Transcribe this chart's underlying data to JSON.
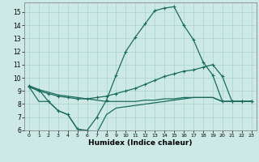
{
  "xlabel": "Humidex (Indice chaleur)",
  "bg_color": "#cce9e5",
  "line_color": "#1a6b5e",
  "grid_color": "#aad4cf",
  "xlim": [
    -0.5,
    23.5
  ],
  "ylim": [
    6,
    15.7
  ],
  "xticks": [
    0,
    1,
    2,
    3,
    4,
    5,
    6,
    7,
    8,
    9,
    10,
    11,
    12,
    13,
    14,
    15,
    16,
    17,
    18,
    19,
    20,
    21,
    22,
    23
  ],
  "yticks": [
    6,
    7,
    8,
    9,
    10,
    11,
    12,
    13,
    14,
    15
  ],
  "line1_x": [
    0,
    1,
    2,
    3,
    4,
    5,
    6,
    7,
    8,
    9,
    10,
    11,
    12,
    13,
    14,
    15,
    16,
    17,
    18,
    19,
    20,
    21,
    22,
    23
  ],
  "line1_y": [
    9.4,
    9.1,
    8.2,
    7.5,
    7.2,
    6.1,
    6.0,
    7.0,
    8.3,
    10.2,
    12.0,
    13.1,
    14.1,
    15.1,
    15.3,
    15.4,
    14.0,
    12.9,
    11.2,
    10.2,
    8.2,
    8.2,
    8.2,
    8.2
  ],
  "line2_x": [
    0,
    1,
    2,
    3,
    4,
    5,
    6,
    7,
    8,
    9,
    10,
    11,
    12,
    13,
    14,
    15,
    16,
    17,
    18,
    19,
    20,
    21,
    22,
    23
  ],
  "line2_y": [
    9.3,
    9.0,
    8.8,
    8.6,
    8.5,
    8.4,
    8.4,
    8.5,
    8.6,
    8.8,
    9.0,
    9.2,
    9.5,
    9.8,
    10.1,
    10.3,
    10.5,
    10.6,
    10.8,
    11.0,
    10.1,
    8.2,
    8.2,
    8.2
  ],
  "line3_x": [
    0,
    1,
    2,
    3,
    4,
    5,
    6,
    7,
    8,
    9,
    10,
    11,
    12,
    13,
    14,
    15,
    16,
    17,
    18,
    19,
    20,
    21,
    22,
    23
  ],
  "line3_y": [
    9.3,
    9.1,
    8.9,
    8.7,
    8.6,
    8.5,
    8.4,
    8.3,
    8.2,
    8.2,
    8.2,
    8.2,
    8.3,
    8.3,
    8.4,
    8.4,
    8.5,
    8.5,
    8.5,
    8.5,
    8.2,
    8.2,
    8.2,
    8.2
  ],
  "line4_x": [
    0,
    1,
    2,
    3,
    4,
    5,
    6,
    7,
    8,
    9,
    10,
    11,
    12,
    13,
    14,
    15,
    16,
    17,
    18,
    19,
    20,
    21,
    22,
    23
  ],
  "line4_y": [
    9.3,
    8.2,
    8.2,
    7.5,
    7.2,
    6.1,
    5.9,
    5.8,
    7.2,
    7.7,
    7.8,
    7.9,
    8.0,
    8.1,
    8.2,
    8.3,
    8.4,
    8.5,
    8.5,
    8.5,
    8.2,
    8.2,
    8.2,
    8.2
  ]
}
